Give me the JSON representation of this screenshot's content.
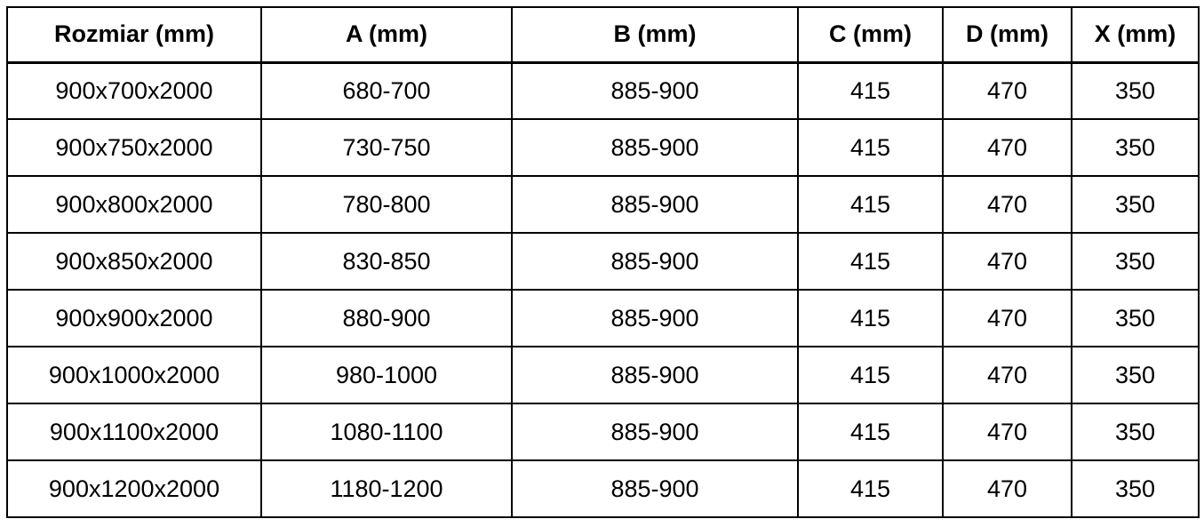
{
  "chart_data": {
    "type": "table",
    "title": "",
    "columns": [
      "Rozmiar (mm)",
      "A (mm)",
      "B (mm)",
      "C (mm)",
      "D (mm)",
      "X (mm)"
    ],
    "rows": [
      [
        "900x700x2000",
        "680-700",
        "885-900",
        "415",
        "470",
        "350"
      ],
      [
        "900x750x2000",
        "730-750",
        "885-900",
        "415",
        "470",
        "350"
      ],
      [
        "900x800x2000",
        "780-800",
        "885-900",
        "415",
        "470",
        "350"
      ],
      [
        "900x850x2000",
        "830-850",
        "885-900",
        "415",
        "470",
        "350"
      ],
      [
        "900x900x2000",
        "880-900",
        "885-900",
        "415",
        "470",
        "350"
      ],
      [
        "900x1000x2000",
        "980-1000",
        "885-900",
        "415",
        "470",
        "350"
      ],
      [
        "900x1100x2000",
        "1080-1100",
        "885-900",
        "415",
        "470",
        "350"
      ],
      [
        "900x1200x2000",
        "1180-1200",
        "885-900",
        "415",
        "470",
        "350"
      ]
    ]
  }
}
